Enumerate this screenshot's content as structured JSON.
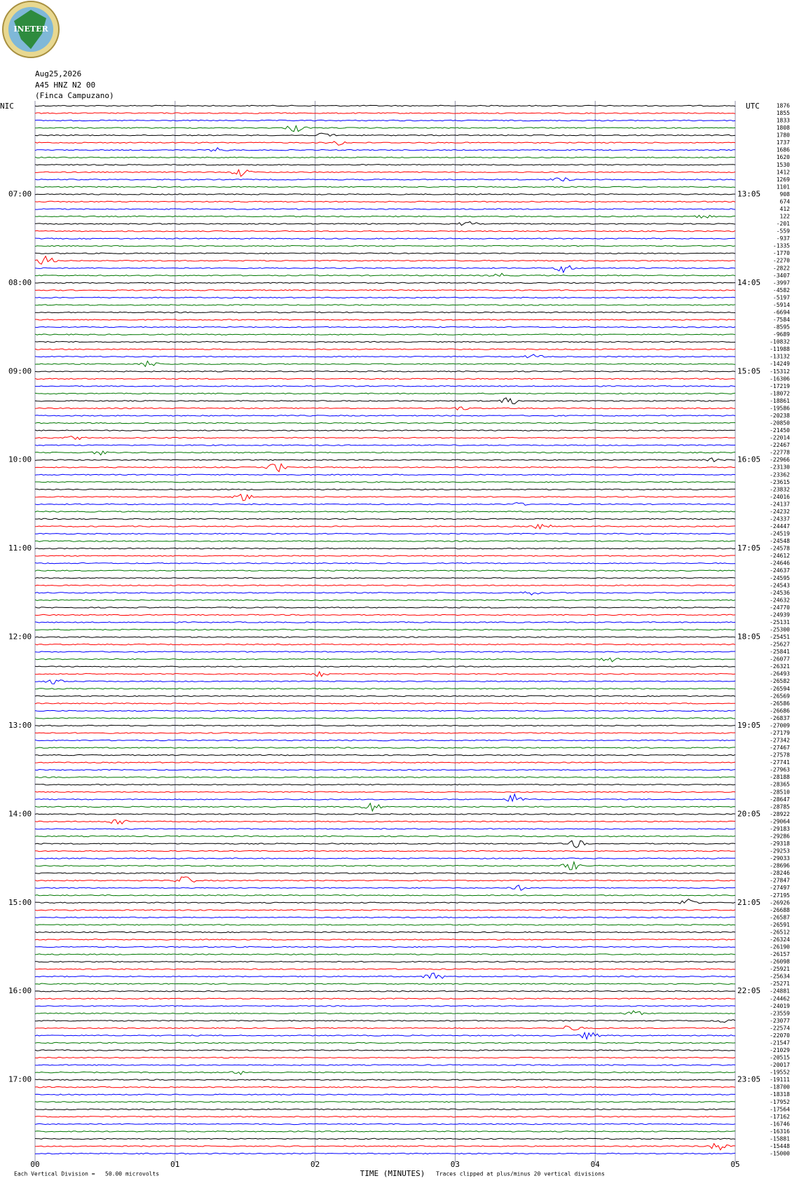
{
  "chart_data": {
    "type": "seismogram",
    "logo_text": "INETER",
    "date": "Aug25,2026",
    "station": "A45 HNZ N2 00",
    "site": "(Finca Campuzano)",
    "left_zone": "NIC",
    "right_zone": "UTC",
    "left_hours": [
      "07:00",
      "08:00",
      "09:00",
      "10:00",
      "11:00",
      "12:00",
      "13:00",
      "14:00",
      "15:00",
      "16:00",
      "17:00"
    ],
    "right_hours": [
      "13:05",
      "14:05",
      "15:05",
      "16:05",
      "17:05",
      "18:05",
      "19:05",
      "20:05",
      "21:05",
      "22:05",
      "23:05"
    ],
    "trace_offsets": [
      1876,
      1855,
      1833,
      1808,
      1780,
      1737,
      1686,
      1620,
      1530,
      1412,
      1269,
      1101,
      908,
      674,
      412,
      122,
      -201,
      -559,
      -937,
      -1335,
      -1770,
      -2270,
      -2822,
      -3407,
      -3997,
      -4582,
      -5197,
      -5914,
      -6694,
      -7584,
      -8595,
      -9689,
      -10832,
      -11988,
      -13132,
      -14249,
      -15312,
      -16306,
      -17219,
      -18072,
      -18861,
      -19586,
      -20238,
      -20850,
      -21450,
      -22014,
      -22467,
      -22778,
      -22966,
      -23130,
      -23362,
      -23615,
      -23832,
      -24016,
      -24137,
      -24232,
      -24337,
      -24447,
      -24519,
      -24548,
      -24578,
      -24612,
      -24646,
      -24637,
      -24595,
      -24543,
      -24536,
      -24632,
      -24770,
      -24939,
      -25131,
      -25300,
      -25451,
      -25627,
      -25841,
      -26077,
      -26321,
      -26493,
      -26582,
      -26594,
      -26569,
      -26586,
      -26686,
      -26837,
      -27009,
      -27179,
      -27342,
      -27467,
      -27578,
      -27741,
      -27963,
      -28188,
      -28365,
      -28510,
      -28647,
      -28785,
      -28922,
      -29064,
      -29183,
      -29286,
      -29318,
      -29253,
      -29033,
      -28696,
      -28246,
      -27847,
      -27497,
      -27195,
      -26926,
      -26688,
      -26587,
      -26591,
      -26512,
      -26324,
      -26190,
      -26157,
      -26098,
      -25921,
      -25634,
      -25271,
      -24881,
      -24462,
      -24019,
      -23559,
      -23077,
      -22574,
      -22070,
      -21547,
      -21029,
      -20515,
      -20017,
      -19552,
      -19111,
      -18700,
      -18318,
      -17952,
      -17564,
      -17162,
      -16746,
      -16316,
      -15881,
      -15448,
      -15000
    ],
    "xlabel": "TIME (MINUTES)",
    "xlim": [
      0,
      5
    ],
    "xticks": [
      {
        "value": 0,
        "label": "00"
      },
      {
        "value": 1,
        "label": "01"
      },
      {
        "value": 2,
        "label": "02"
      },
      {
        "value": 3,
        "label": "03"
      },
      {
        "value": 4,
        "label": "04"
      },
      {
        "value": 5,
        "label": "05"
      }
    ],
    "scale_note": "Each Vertical Division =   50.00 microvolts",
    "clip_note": "Traces clipped at plus/minus 20 vertical divisions",
    "trace_colors": [
      "#000000",
      "#ff0000",
      "#0000ff",
      "#007700"
    ],
    "grid": true
  }
}
